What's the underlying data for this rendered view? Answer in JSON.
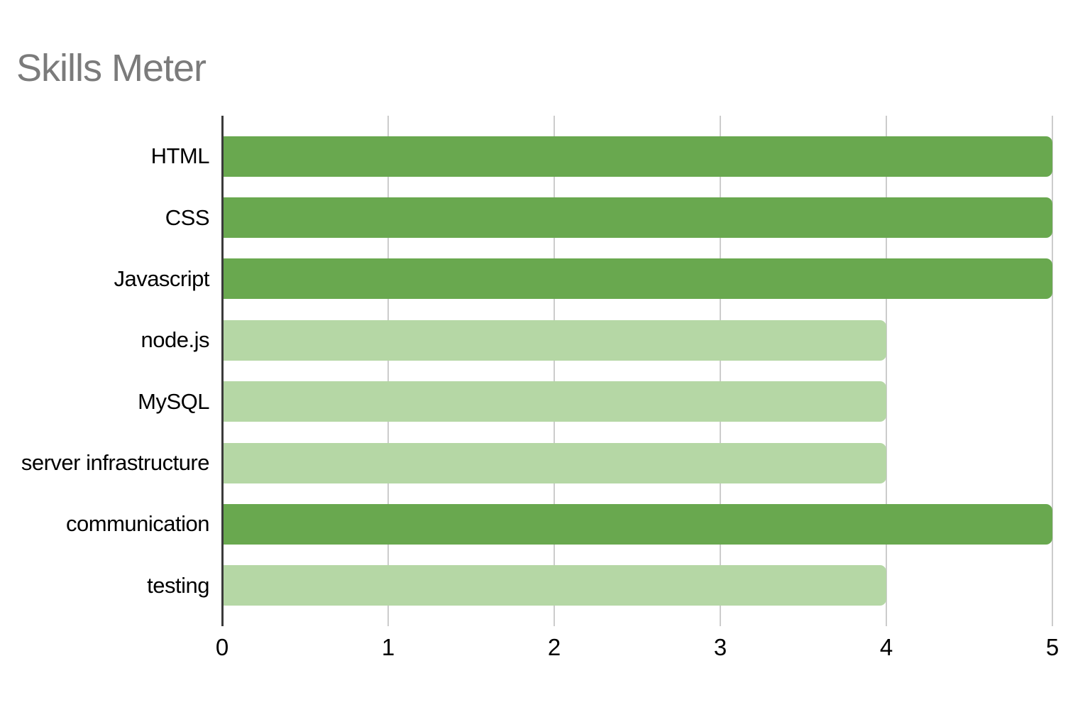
{
  "chart_data": {
    "type": "bar",
    "orientation": "horizontal",
    "title": "Skills Meter",
    "categories": [
      "HTML",
      "CSS",
      "Javascript",
      "node.js",
      "MySQL",
      "server infrastructure",
      "communication",
      "testing"
    ],
    "values": [
      5,
      5,
      5,
      4,
      4,
      4,
      5,
      4
    ],
    "bar_colors": [
      "#69a84f",
      "#69a84f",
      "#69a84f",
      "#b5d7a5",
      "#b5d7a5",
      "#b5d7a5",
      "#69a84f",
      "#b5d7a5"
    ],
    "xticks": [
      "0",
      "1",
      "2",
      "3",
      "4",
      "5"
    ],
    "xlim": [
      0,
      5
    ],
    "xlabel": "",
    "ylabel": "",
    "grid": true,
    "legend": "none",
    "colors": {
      "bar_dark_green": "#69a84f",
      "bar_light_green": "#b5d7a5",
      "title_text": "#7b7b7b",
      "gridline": "#cccccc",
      "axis_line": "#3b3b3b",
      "label_text": "#000000",
      "background": "#ffffff"
    }
  }
}
